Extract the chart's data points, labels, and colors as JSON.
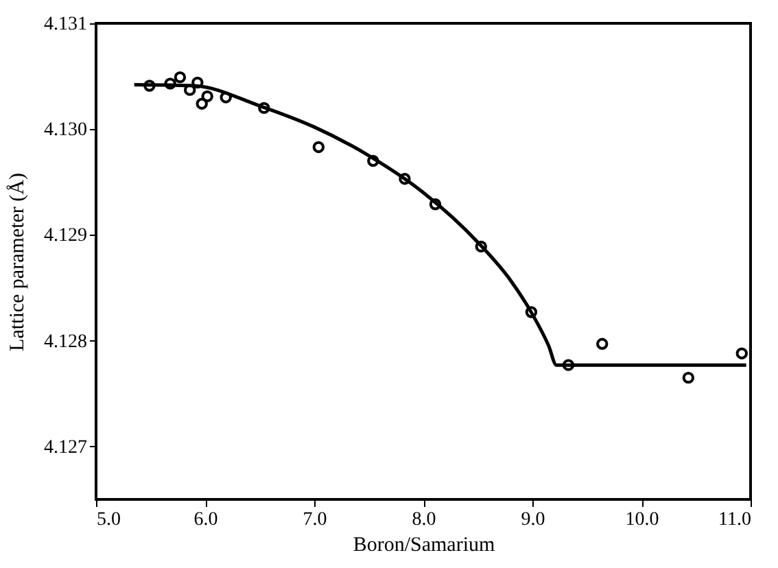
{
  "chart_data": {
    "type": "scatter",
    "xlabel": "Boron/Samarium",
    "ylabel": "Lattice parameter (Å)",
    "xlim": [
      5.0,
      11.0
    ],
    "xticks": [
      {
        "value": 5,
        "label": "5.0"
      },
      {
        "value": 6,
        "label": "6.0"
      },
      {
        "value": 7,
        "label": "7.0"
      },
      {
        "value": 8,
        "label": "8.0"
      },
      {
        "value": 9,
        "label": "9.0"
      },
      {
        "value": 10,
        "label": "10.0"
      },
      {
        "value": 11,
        "label": "11.0"
      }
    ],
    "ylim": [
      4.1265,
      4.131
    ],
    "yticks": [
      4.127,
      4.128,
      4.129,
      {
        "value": 4.13,
        "label": "4.130"
      },
      4.131
    ],
    "grid": false,
    "marker": "circle",
    "series": [
      {
        "type": "scatter",
        "color": "#000000",
        "x": [
          5.49,
          5.68,
          5.77,
          5.86,
          5.93,
          5.97,
          6.02,
          6.19,
          6.54,
          7.04,
          7.54,
          7.83,
          8.11,
          8.53,
          8.99,
          9.33,
          9.64,
          10.43,
          10.92
        ],
        "values": [
          4.13041,
          4.13043,
          4.13049,
          4.13037,
          4.13044,
          4.13024,
          4.13031,
          4.1303,
          4.1302,
          4.12983,
          4.1297,
          4.12953,
          4.12929,
          4.12889,
          4.12827,
          4.12777,
          4.12797,
          4.12765,
          4.12788
        ]
      },
      {
        "type": "line",
        "color": "#000000",
        "line_style": "solid",
        "marker": "none",
        "x": [
          5.35,
          5.9,
          6.5,
          7.0,
          7.5,
          8.0,
          8.5,
          8.8,
          9.0,
          9.15,
          9.22,
          10.96
        ],
        "values": [
          4.13042,
          4.13041,
          4.13022,
          4.13002,
          4.12975,
          4.1294,
          4.12893,
          4.12857,
          4.12825,
          4.12795,
          4.12777,
          4.12777
        ]
      }
    ]
  }
}
